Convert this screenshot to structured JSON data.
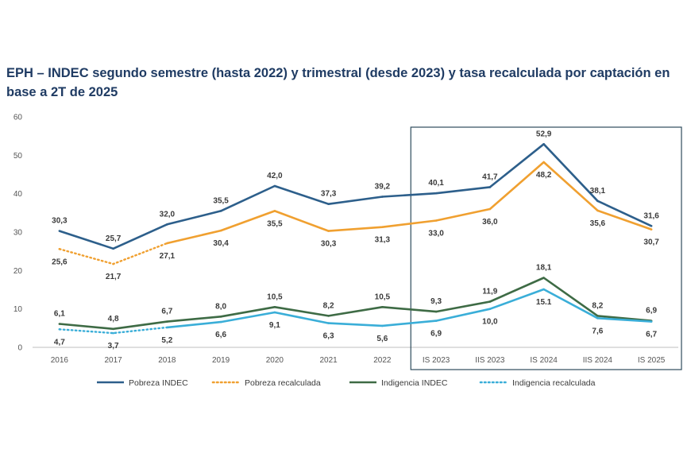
{
  "chart_data": {
    "type": "line",
    "title": "EPH – INDEC segundo semestre (hasta 2022) y trimestral (desde 2023) y tasa recalculada por captación en base a 2T de 2025",
    "xlabel": "",
    "ylabel": "",
    "ylim": [
      0,
      60
    ],
    "yticks": [
      0,
      10,
      20,
      30,
      40,
      50,
      60
    ],
    "grid": false,
    "legend_position": "bottom",
    "categories": [
      "2016",
      "2017",
      "2018",
      "2019",
      "2020",
      "2021",
      "2022",
      "IS 2023",
      "IIS 2023",
      "IS 2024",
      "IIS 2024",
      "IS 2025"
    ],
    "highlight_box": {
      "from": "IS 2023",
      "to": "IS 2025"
    },
    "series": [
      {
        "name": "Pobreza INDEC",
        "color": "#2d5f8b",
        "style": "solid",
        "values": [
          30.3,
          25.7,
          32.0,
          35.5,
          42.0,
          37.3,
          39.2,
          40.1,
          41.7,
          52.9,
          38.1,
          31.6
        ],
        "labels": [
          "30,3",
          "25,7",
          "32,0",
          "35,5",
          "42,0",
          "37,3",
          "39,2",
          "40,1",
          "41,7",
          "52,9",
          "38,1",
          "31,6"
        ],
        "label_pos": "above"
      },
      {
        "name": "Pobreza recalculada",
        "color": "#f0a030",
        "style": "dotted-then-solid",
        "solid_from": 2,
        "values": [
          25.6,
          21.7,
          27.1,
          30.4,
          35.5,
          30.3,
          31.3,
          33.0,
          36.0,
          48.2,
          35.6,
          30.7
        ],
        "labels": [
          "25,6",
          "21,7",
          "27,1",
          "30,4",
          "35,5",
          "30,3",
          "31,3",
          "33,0",
          "36,0",
          "48,2",
          "35,6",
          "30,7"
        ],
        "label_pos": "below"
      },
      {
        "name": "Indigencia INDEC",
        "color": "#3e6b45",
        "style": "solid",
        "values": [
          6.1,
          4.8,
          6.7,
          8.0,
          10.5,
          8.2,
          10.5,
          9.3,
          11.9,
          18.1,
          8.2,
          6.9
        ],
        "labels": [
          "6,1",
          "4,8",
          "6,7",
          "8,0",
          "10,5",
          "8,2",
          "10,5",
          "9,3",
          "11,9",
          "18,1",
          "8,2",
          "6,9"
        ],
        "label_pos": "above"
      },
      {
        "name": "Indigencia recalculada",
        "color": "#3aaed8",
        "style": "dotted-then-solid",
        "solid_from": 2,
        "values": [
          4.7,
          3.7,
          5.2,
          6.6,
          9.1,
          6.3,
          5.6,
          6.9,
          10.0,
          15.1,
          7.6,
          6.7
        ],
        "labels": [
          "4,7",
          "3,7",
          "5,2",
          "6,6",
          "9,1",
          "6,3",
          "5,6",
          "6,9",
          "10,0",
          "15.1",
          "7,6",
          "6,7"
        ],
        "label_pos": "below"
      }
    ]
  }
}
